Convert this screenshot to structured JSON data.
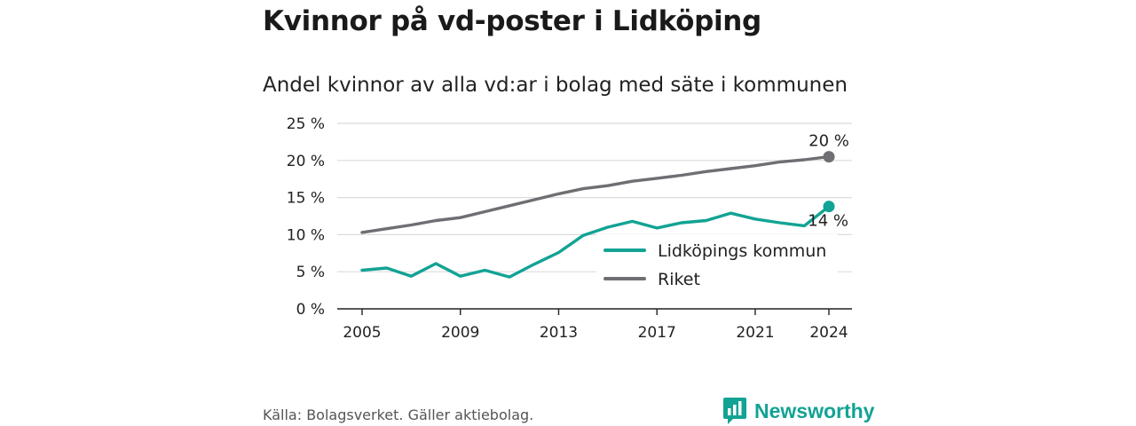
{
  "title": "Kvinnor på vd-poster i Lidköping",
  "subtitle": "Andel kvinnor av alla vd:ar i bolag med säte i kommunen",
  "source": "Källa: Bolagsverket. Gäller aktiebolag.",
  "brand": {
    "name": "Newsworthy",
    "icon": "newsworthy-logo-icon",
    "color": "#12a394"
  },
  "chart_data": {
    "type": "line",
    "title": "",
    "xlabel": "",
    "ylabel": "",
    "x": [
      2005,
      2006,
      2007,
      2008,
      2009,
      2010,
      2011,
      2012,
      2013,
      2014,
      2015,
      2016,
      2017,
      2018,
      2019,
      2020,
      2021,
      2022,
      2023,
      2024
    ],
    "ylim": [
      0,
      25
    ],
    "y_ticks": [
      0,
      5,
      10,
      15,
      20,
      25
    ],
    "y_tick_labels": [
      "0 %",
      "5 %",
      "10 %",
      "15 %",
      "20 %",
      "25 %"
    ],
    "x_ticks": [
      2005,
      2009,
      2013,
      2017,
      2021,
      2024
    ],
    "x_tick_labels": [
      "2005",
      "2009",
      "2013",
      "2017",
      "2021",
      "2024"
    ],
    "grid": "horizontal",
    "legend_position": "lower-right",
    "series": [
      {
        "name": "Lidköpings kommun",
        "color": "#12a394",
        "values": [
          5.2,
          5.5,
          4.4,
          6.1,
          4.4,
          5.2,
          4.3,
          6.0,
          7.6,
          9.9,
          11.0,
          11.8,
          10.9,
          11.6,
          11.9,
          12.9,
          12.1,
          11.6,
          11.2,
          13.8
        ],
        "end_label": "14 %"
      },
      {
        "name": "Riket",
        "color": "#6e6e73",
        "values": [
          10.3,
          10.8,
          11.3,
          11.9,
          12.3,
          13.1,
          13.9,
          14.7,
          15.5,
          16.2,
          16.6,
          17.2,
          17.6,
          18.0,
          18.5,
          18.9,
          19.3,
          19.8,
          20.1,
          20.5
        ],
        "end_label": "20 %"
      }
    ]
  }
}
